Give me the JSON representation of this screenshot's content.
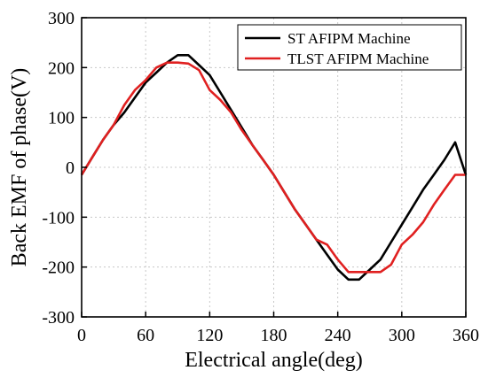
{
  "chart_data": {
    "type": "line",
    "xlabel": "Electrical angle(deg)",
    "ylabel": "Back EMF of phase(V)",
    "xlim": [
      0,
      360
    ],
    "ylim": [
      -300,
      300
    ],
    "x_ticks": [
      "0",
      "60",
      "120",
      "180",
      "240",
      "300",
      "360"
    ],
    "y_ticks": [
      "-300",
      "-200",
      "-100",
      "0",
      "100",
      "200",
      "300"
    ],
    "grid": true,
    "legend_position": "top-right",
    "series": [
      {
        "name": "ST AFIPM Machine",
        "color": "#000000",
        "x": [
          0,
          10,
          20,
          30,
          40,
          50,
          60,
          70,
          80,
          90,
          100,
          110,
          120,
          130,
          140,
          150,
          160,
          170,
          180,
          190,
          200,
          210,
          220,
          230,
          240,
          250,
          260,
          270,
          280,
          290,
          300,
          310,
          320,
          330,
          340,
          350,
          360
        ],
        "y": [
          -15,
          20,
          55,
          85,
          110,
          140,
          170,
          190,
          210,
          225,
          225,
          205,
          185,
          150,
          115,
          80,
          45,
          15,
          -15,
          -50,
          -85,
          -115,
          -145,
          -175,
          -205,
          -225,
          -225,
          -205,
          -185,
          -150,
          -115,
          -80,
          -45,
          -15,
          15,
          50,
          -15
        ]
      },
      {
        "name": "TLST AFIPM Machine",
        "color": "#e02020",
        "x": [
          0,
          10,
          20,
          30,
          40,
          50,
          60,
          70,
          80,
          90,
          100,
          110,
          120,
          130,
          140,
          150,
          160,
          170,
          180,
          190,
          200,
          210,
          220,
          230,
          240,
          250,
          260,
          270,
          280,
          290,
          300,
          310,
          320,
          330,
          340,
          350,
          360
        ],
        "y": [
          -15,
          20,
          55,
          85,
          125,
          155,
          175,
          200,
          210,
          210,
          208,
          195,
          155,
          135,
          110,
          75,
          45,
          15,
          -15,
          -50,
          -85,
          -115,
          -145,
          -155,
          -185,
          -210,
          -210,
          -210,
          -210,
          -195,
          -155,
          -135,
          -110,
          -75,
          -45,
          -15,
          -15
        ]
      }
    ]
  }
}
